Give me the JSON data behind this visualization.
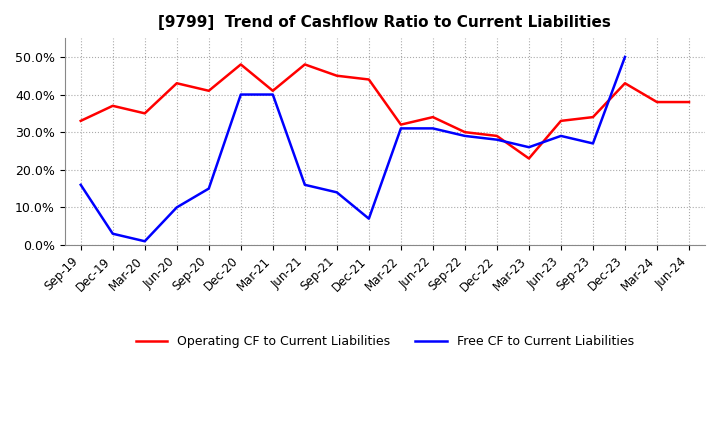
{
  "title": "[9799]  Trend of Cashflow Ratio to Current Liabilities",
  "x_labels": [
    "Sep-19",
    "Dec-19",
    "Mar-20",
    "Jun-20",
    "Sep-20",
    "Dec-20",
    "Mar-21",
    "Jun-21",
    "Sep-21",
    "Dec-21",
    "Mar-22",
    "Jun-22",
    "Sep-22",
    "Dec-22",
    "Mar-23",
    "Jun-23",
    "Sep-23",
    "Dec-23",
    "Mar-24",
    "Jun-24"
  ],
  "operating_cf": [
    0.33,
    0.37,
    0.35,
    0.43,
    0.41,
    0.48,
    0.41,
    0.48,
    0.45,
    0.44,
    0.32,
    0.34,
    0.3,
    0.29,
    0.23,
    0.33,
    0.34,
    0.43,
    0.38,
    0.38
  ],
  "free_cf": [
    0.16,
    0.03,
    0.01,
    0.1,
    0.15,
    0.4,
    0.4,
    0.16,
    0.14,
    0.07,
    0.31,
    0.31,
    0.29,
    0.28,
    0.26,
    0.29,
    0.27,
    0.5,
    null,
    null
  ],
  "ylim": [
    0.0,
    0.55
  ],
  "yticks": [
    0.0,
    0.1,
    0.2,
    0.3,
    0.4,
    0.5
  ],
  "operating_color": "#FF0000",
  "free_color": "#0000FF",
  "legend_labels": [
    "Operating CF to Current Liabilities",
    "Free CF to Current Liabilities"
  ],
  "background_color": "#FFFFFF",
  "plot_bg_color": "#FFFFFF"
}
